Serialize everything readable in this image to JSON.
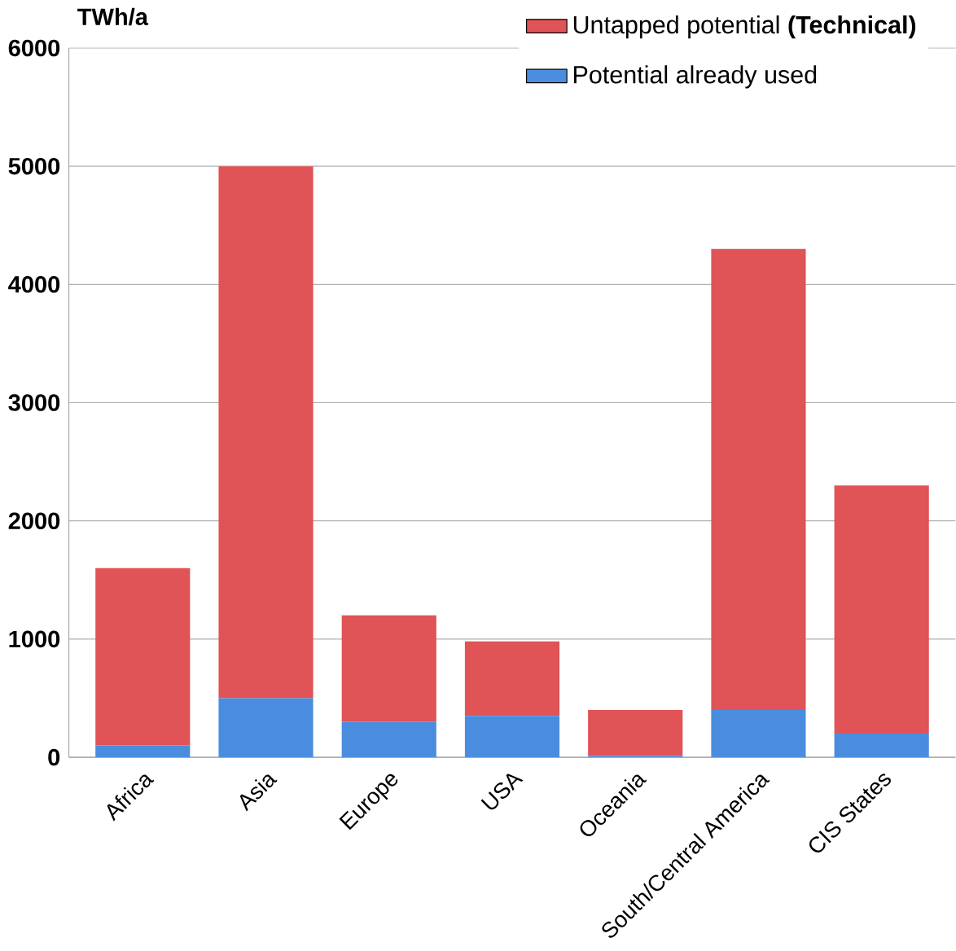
{
  "chart_data": {
    "type": "bar",
    "stacked": true,
    "ylabel": "TWh/a",
    "categories": [
      "Africa",
      "Asia",
      "Europe",
      "USA",
      "Oceania",
      "South/Central America",
      "CIS States"
    ],
    "series": [
      {
        "name": "Potential already used",
        "color": "#4a8ddf",
        "values": [
          100,
          500,
          300,
          350,
          10,
          400,
          200
        ]
      },
      {
        "name": "Untapped potential **(Technical)**",
        "color": "#e05356",
        "values": [
          1500,
          4500,
          900,
          630,
          390,
          3900,
          2100
        ]
      }
    ],
    "ylim": [
      0,
      6000
    ],
    "yticks": [
      0,
      1000,
      2000,
      3000,
      4000,
      5000,
      6000
    ],
    "grid": "y",
    "legend": "top right"
  }
}
